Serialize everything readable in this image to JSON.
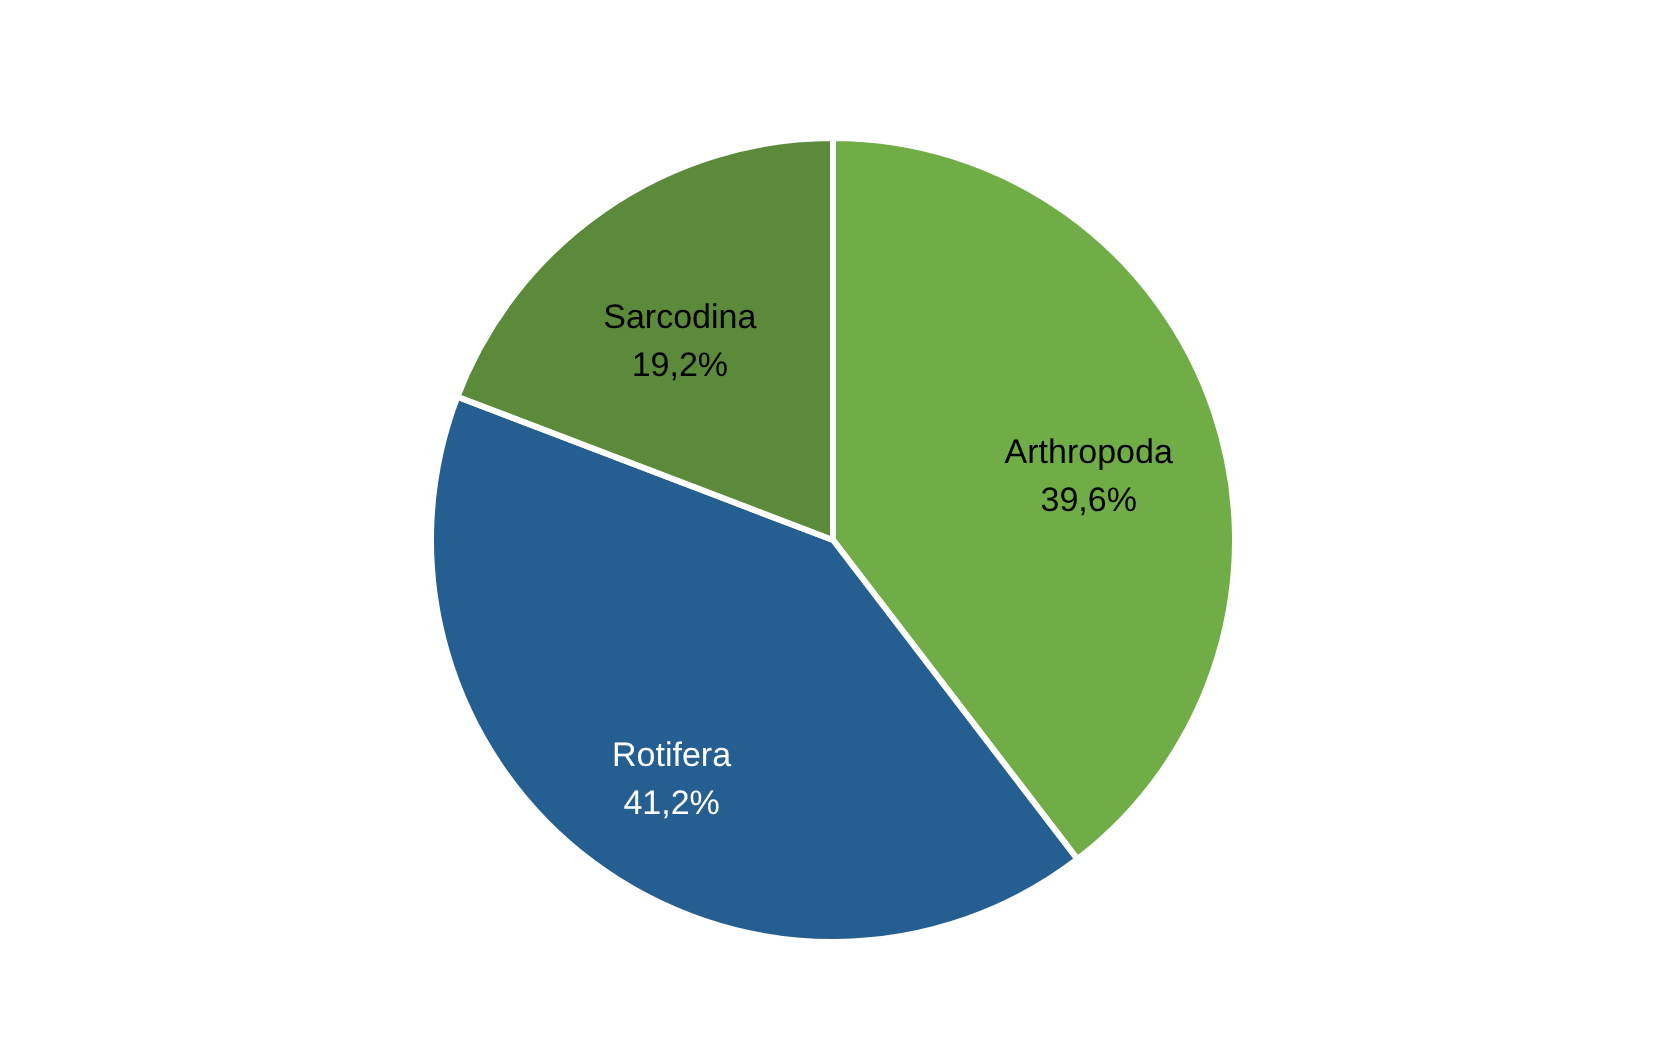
{
  "chart_data": {
    "type": "pie",
    "categories": [
      "Arthropoda",
      "Rotifera",
      "Sarcodina"
    ],
    "values": [
      39.6,
      41.2,
      19.2
    ],
    "colors": [
      "#70ad47",
      "#255e91",
      "#5b8a3a"
    ],
    "value_labels": [
      "39,6%",
      "41,2%",
      "19,2%"
    ],
    "legend": false
  }
}
